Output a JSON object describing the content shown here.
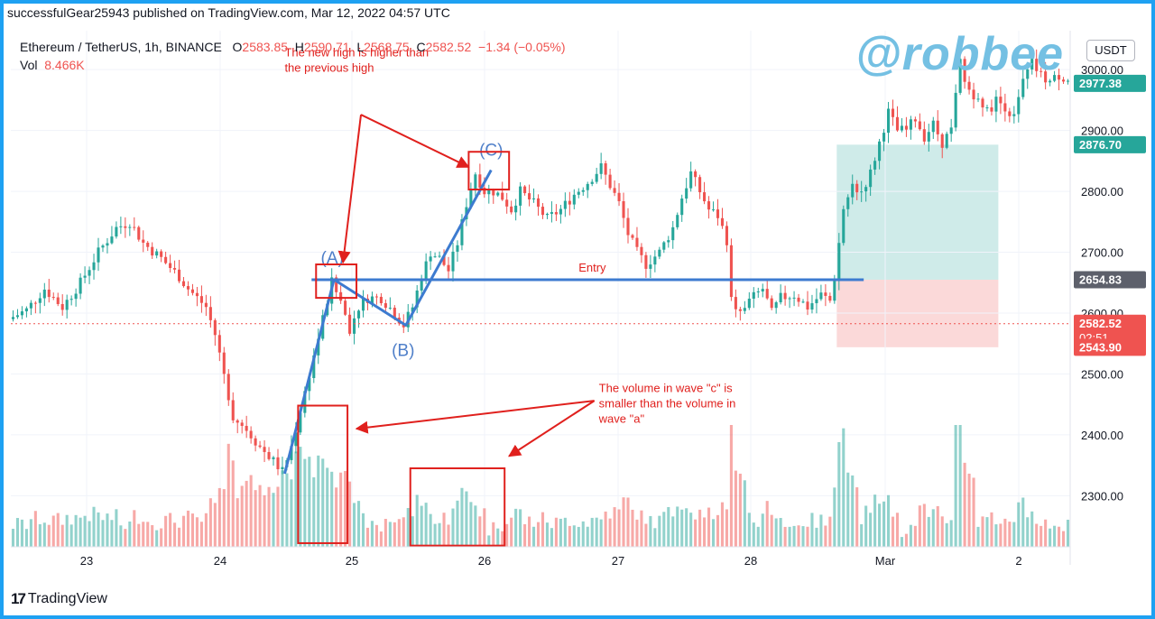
{
  "header": {
    "published": "successfulGear25943 published on TradingView.com, Mar 12, 2022 04:57 UTC"
  },
  "legend": {
    "symbol": "Ethereum / TetherUS, 1h, BINANCE",
    "o_label": "O",
    "o": "2583.85",
    "h_label": "H",
    "h": "2590.71",
    "l_label": "L",
    "l": "2568.75",
    "c_label": "C",
    "c": "2582.52",
    "change": "−1.34 (−0.05%)",
    "vol_label": "Vol",
    "vol": "8.466K"
  },
  "watermark": "@robbee",
  "currency_button": "USDT",
  "branding": {
    "name": "TradingView",
    "mark": "17"
  },
  "colors": {
    "up": "#26a69a",
    "down": "#ef5350",
    "annotation": "#e0201d",
    "wave": "#3d7bd0",
    "accent": "#1ea1f2"
  },
  "chart_data": {
    "type": "candlestick",
    "symbol": "ETHUSDT",
    "interval": "1h",
    "y_axis": {
      "ticks": [
        2300,
        2400,
        2500,
        2600,
        2700,
        2800,
        2900,
        3000
      ],
      "tick_labels": [
        "2300.00",
        "2400.00",
        "2500.00",
        "2600.00",
        "2700.00",
        "2800.00",
        "2900.00",
        "3000.00"
      ],
      "range": [
        2216,
        3064
      ]
    },
    "x_axis": {
      "labels": [
        "23",
        "24",
        "25",
        "26",
        "27",
        "28",
        "Mar",
        "2"
      ],
      "range_hours": [
        0,
        236
      ]
    },
    "price_badges": [
      {
        "value": "2977.38",
        "price": 2977.38,
        "color": "#26a69a"
      },
      {
        "value": "2876.70",
        "price": 2876.7,
        "color": "#26a69a"
      },
      {
        "value": "2654.83",
        "price": 2654.83,
        "color": "#5d606b"
      },
      {
        "value": "2582.52",
        "countdown": "02:51",
        "price": 2582.52,
        "color": "#ef5350"
      },
      {
        "value": "2543.90",
        "price": 2543.9,
        "color": "#ef5350"
      }
    ],
    "last_price": 2582.52,
    "entry_line": {
      "label": "Entry",
      "price": 2654.83,
      "from_hour": 67,
      "to_hour": 190
    },
    "position": {
      "entry": 2654.83,
      "target": 2876.7,
      "stop": 2543.9,
      "from_hour": 184,
      "to_hour": 220
    },
    "waves": {
      "points": [
        {
          "label": "",
          "hour": 61,
          "price": 2336
        },
        {
          "label": "(A)",
          "hour": 72,
          "price": 2655
        },
        {
          "label": "(B)",
          "hour": 88,
          "price": 2580
        },
        {
          "label": "(C)",
          "hour": 107,
          "price": 2835
        }
      ]
    },
    "highlight_boxes": [
      {
        "name": "wave-a-high-box",
        "hour_from": 68,
        "hour_to": 77,
        "price_top": 2680,
        "price_bottom": 2625
      },
      {
        "name": "wave-c-high-box",
        "hour_from": 102,
        "hour_to": 111,
        "price_top": 2865,
        "price_bottom": 2803
      },
      {
        "name": "wave-a-volume-box",
        "hour_from": 64,
        "hour_to": 75,
        "price_top": 2448,
        "price_bottom": 2222
      },
      {
        "name": "wave-c-volume-box",
        "hour_from": 89,
        "hour_to": 110,
        "price_top": 2345,
        "price_bottom": 2218
      }
    ],
    "annotations": [
      {
        "lines": [
          "The new high is higher than",
          "the previous high"
        ],
        "hour": 61,
        "price": 3022
      },
      {
        "lines": [
          "The volume in wave \"c\" is",
          "smaller than the volume in",
          "wave \"a\""
        ],
        "hour": 131,
        "price": 2470
      }
    ],
    "arrows": [
      {
        "from_hour": 78,
        "from_price": 2926,
        "to_hour": 74,
        "to_price": 2683
      },
      {
        "from_hour": 78,
        "from_price": 2926,
        "to_hour": 102,
        "to_price": 2840
      },
      {
        "from_hour": 130,
        "from_price": 2456,
        "to_hour": 77,
        "to_price": 2410
      },
      {
        "from_hour": 130,
        "from_price": 2456,
        "to_hour": 111,
        "to_price": 2365
      }
    ],
    "price_path": [
      [
        0,
        2590
      ],
      [
        4,
        2605
      ],
      [
        8,
        2640
      ],
      [
        12,
        2610
      ],
      [
        16,
        2650
      ],
      [
        20,
        2700
      ],
      [
        24,
        2740
      ],
      [
        27,
        2750
      ],
      [
        30,
        2715
      ],
      [
        34,
        2690
      ],
      [
        38,
        2660
      ],
      [
        40,
        2640
      ],
      [
        44,
        2610
      ],
      [
        46,
        2565
      ],
      [
        48,
        2500
      ],
      [
        50,
        2430
      ],
      [
        53,
        2410
      ],
      [
        56,
        2380
      ],
      [
        58,
        2365
      ],
      [
        61,
        2340
      ],
      [
        63,
        2380
      ],
      [
        65,
        2440
      ],
      [
        67,
        2500
      ],
      [
        69,
        2560
      ],
      [
        72,
        2650
      ],
      [
        74,
        2620
      ],
      [
        76,
        2575
      ],
      [
        78,
        2610
      ],
      [
        80,
        2625
      ],
      [
        83,
        2625
      ],
      [
        86,
        2600
      ],
      [
        88,
        2580
      ],
      [
        90,
        2610
      ],
      [
        92,
        2660
      ],
      [
        94,
        2700
      ],
      [
        96,
        2690
      ],
      [
        98,
        2670
      ],
      [
        100,
        2715
      ],
      [
        102,
        2780
      ],
      [
        104,
        2830
      ],
      [
        106,
        2800
      ],
      [
        108,
        2800
      ],
      [
        110,
        2790
      ],
      [
        112,
        2770
      ],
      [
        114,
        2800
      ],
      [
        117,
        2780
      ],
      [
        120,
        2755
      ],
      [
        123,
        2770
      ],
      [
        126,
        2795
      ],
      [
        129,
        2815
      ],
      [
        132,
        2840
      ],
      [
        134,
        2810
      ],
      [
        136,
        2780
      ],
      [
        138,
        2730
      ],
      [
        140,
        2700
      ],
      [
        142,
        2680
      ],
      [
        145,
        2700
      ],
      [
        148,
        2740
      ],
      [
        150,
        2790
      ],
      [
        152,
        2830
      ],
      [
        154,
        2800
      ],
      [
        156,
        2770
      ],
      [
        158,
        2760
      ],
      [
        160,
        2720
      ],
      [
        161,
        2620
      ],
      [
        163,
        2600
      ],
      [
        165,
        2620
      ],
      [
        168,
        2640
      ],
      [
        170,
        2600
      ],
      [
        172,
        2625
      ],
      [
        175,
        2630
      ],
      [
        178,
        2610
      ],
      [
        181,
        2630
      ],
      [
        183,
        2620
      ],
      [
        184,
        2660
      ],
      [
        186,
        2770
      ],
      [
        188,
        2810
      ],
      [
        190,
        2800
      ],
      [
        192,
        2830
      ],
      [
        194,
        2880
      ],
      [
        196,
        2930
      ],
      [
        198,
        2900
      ],
      [
        200,
        2900
      ],
      [
        202,
        2920
      ],
      [
        204,
        2890
      ],
      [
        206,
        2910
      ],
      [
        208,
        2880
      ],
      [
        210,
        2900
      ],
      [
        212,
        3010
      ],
      [
        214,
        2960
      ],
      [
        216,
        2960
      ],
      [
        218,
        2930
      ],
      [
        220,
        2950
      ],
      [
        222,
        2940
      ],
      [
        224,
        2920
      ],
      [
        226,
        2980
      ],
      [
        228,
        3010
      ],
      [
        230,
        2990
      ],
      [
        232,
        2980
      ],
      [
        234,
        2990
      ],
      [
        236,
        2985
      ]
    ],
    "volume_scale_max": 100
  }
}
